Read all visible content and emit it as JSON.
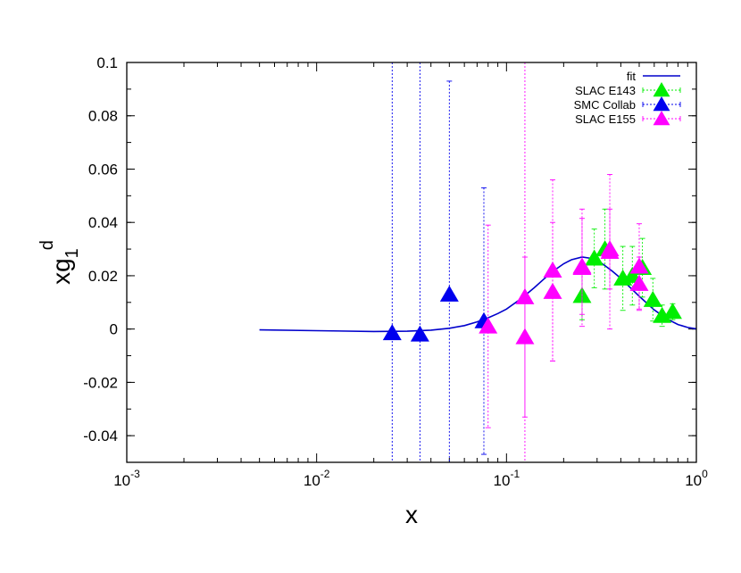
{
  "chart_data": {
    "type": "scatter",
    "xscale": "log",
    "xlim": [
      0.001,
      1
    ],
    "ylim": [
      -0.05,
      0.1
    ],
    "xlabel": "x",
    "ylabel_main": "xg",
    "ylabel_sub": "1",
    "ylabel_sup": "d",
    "x_ticks": [
      {
        "value": 0.001,
        "base": "10",
        "exp": "-3"
      },
      {
        "value": 0.01,
        "base": "10",
        "exp": "-2"
      },
      {
        "value": 0.1,
        "base": "10",
        "exp": "-1"
      },
      {
        "value": 1,
        "base": "10",
        "exp": "0"
      }
    ],
    "y_ticks": [
      {
        "value": 0.1,
        "label": "0.1"
      },
      {
        "value": 0.08,
        "label": "0.08"
      },
      {
        "value": 0.06,
        "label": "0.06"
      },
      {
        "value": 0.04,
        "label": "0.04"
      },
      {
        "value": 0.02,
        "label": "0.02"
      },
      {
        "value": 0,
        "label": "0"
      },
      {
        "value": -0.02,
        "label": "-0.02"
      },
      {
        "value": -0.04,
        "label": "-0.04"
      }
    ],
    "legend_position": "top-right",
    "fit": {
      "name": "fit",
      "color": "#0000cc",
      "x": [
        0.005,
        0.01,
        0.02,
        0.03,
        0.04,
        0.05,
        0.06,
        0.07,
        0.08,
        0.09,
        0.1,
        0.12,
        0.14,
        0.16,
        0.18,
        0.2,
        0.22,
        0.25,
        0.28,
        0.32,
        0.36,
        0.4,
        0.45,
        0.5,
        0.6,
        0.7,
        0.8,
        0.9,
        1.0
      ],
      "y": [
        -0.0003,
        -0.0006,
        -0.0009,
        -0.0008,
        -0.0004,
        0.0003,
        0.0013,
        0.0027,
        0.0042,
        0.0058,
        0.0075,
        0.0115,
        0.0155,
        0.0192,
        0.0222,
        0.0245,
        0.026,
        0.027,
        0.0265,
        0.0245,
        0.0218,
        0.019,
        0.0155,
        0.0123,
        0.0072,
        0.0038,
        0.0017,
        0.0006,
        0.0001
      ]
    },
    "series": [
      {
        "name": "SLAC E143",
        "color": "#00ee00",
        "points": [
          {
            "x": 0.25,
            "y": 0.0125,
            "err": 0.009
          },
          {
            "x": 0.29,
            "y": 0.0265,
            "err": 0.011
          },
          {
            "x": 0.33,
            "y": 0.03,
            "err": 0.015
          },
          {
            "x": 0.41,
            "y": 0.019,
            "err": 0.012
          },
          {
            "x": 0.46,
            "y": 0.02,
            "err": 0.011
          },
          {
            "x": 0.52,
            "y": 0.023,
            "err": 0.011
          },
          {
            "x": 0.59,
            "y": 0.011,
            "err": 0.008
          },
          {
            "x": 0.66,
            "y": 0.005,
            "err": 0.004
          },
          {
            "x": 0.75,
            "y": 0.0065,
            "err": 0.003
          }
        ]
      },
      {
        "name": "SMC Collab",
        "color": "#0000ee",
        "points": [
          {
            "x": 0.025,
            "y": -0.0015,
            "err": 0.16
          },
          {
            "x": 0.035,
            "y": -0.002,
            "err": 0.16
          },
          {
            "x": 0.05,
            "y": 0.013,
            "err": 0.08
          },
          {
            "x": 0.076,
            "y": 0.003,
            "err": 0.05
          }
        ]
      },
      {
        "name": "SLAC E155",
        "color": "#ff00ff",
        "points": [
          {
            "x": 0.08,
            "y": 0.001,
            "err": 0.038
          },
          {
            "x": 0.125,
            "y": 0.012,
            "err": 0.135
          },
          {
            "x": 0.125,
            "y": -0.003,
            "err": 0.03
          },
          {
            "x": 0.175,
            "y": 0.022,
            "err": 0.034
          },
          {
            "x": 0.175,
            "y": 0.014,
            "err": 0.026
          },
          {
            "x": 0.25,
            "y": 0.023,
            "err": 0.022
          },
          {
            "x": 0.25,
            "y": 0.0235,
            "err": 0.018
          },
          {
            "x": 0.35,
            "y": 0.029,
            "err": 0.029
          },
          {
            "x": 0.35,
            "y": 0.03,
            "err": 0.015
          },
          {
            "x": 0.5,
            "y": 0.0235,
            "err": 0.016
          },
          {
            "x": 0.5,
            "y": 0.017,
            "err": 0.01
          }
        ]
      }
    ]
  }
}
